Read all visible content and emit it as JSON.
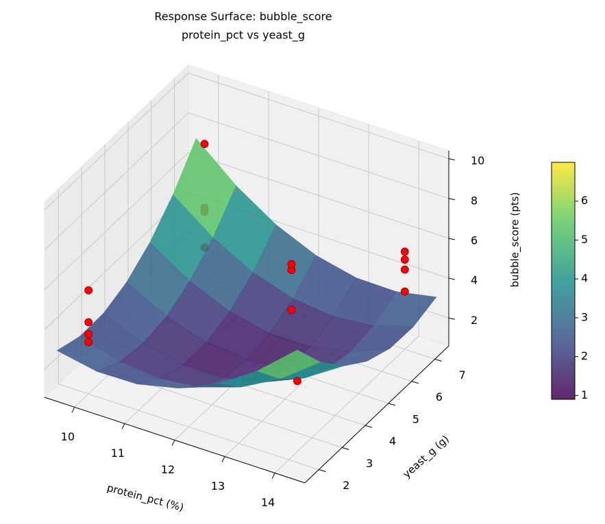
{
  "chart_data": {
    "type": "surface3d",
    "title": "Response Surface: bubble_score",
    "subtitle": "protein_pct vs yeast_g",
    "x_label": "protein_pct (%)",
    "y_label": "yeast_g (g)",
    "z_label": "bubble_score (pts)",
    "xlim": [
      9.4,
      14.6
    ],
    "ylim": [
      1.4,
      7.6
    ],
    "zlim": [
      0.6,
      10.4
    ],
    "xticks": [
      10,
      11,
      12,
      13,
      14
    ],
    "yticks": [
      2,
      3,
      4,
      5,
      6,
      7
    ],
    "zticks": [
      2,
      4,
      6,
      8,
      10
    ],
    "grid": true,
    "colormap": "viridis",
    "surface_alpha": 0.85,
    "colorbar": {
      "clim": [
        0.9,
        7.0
      ],
      "ticks": [
        1,
        2,
        3,
        4,
        5,
        6
      ]
    },
    "surface": {
      "x": [
        9.6,
        10.4,
        11.2,
        12,
        12.8,
        13.6,
        14.4
      ],
      "y": [
        1.5,
        2.5,
        3.5,
        4.5,
        5.5,
        6.5,
        7.5
      ],
      "z": [
        [
          3.0,
          2.61,
          2.64,
          3.1,
          3.98,
          5.28,
          7.0
        ],
        [
          2.61,
          2.0,
          1.81,
          2.04,
          2.7,
          3.78,
          5.28
        ],
        [
          2.64,
          1.81,
          1.4,
          1.41,
          1.84,
          2.7,
          3.98
        ],
        [
          3.1,
          2.04,
          1.41,
          1.2,
          1.41,
          2.04,
          3.1
        ],
        [
          3.98,
          2.7,
          1.84,
          1.41,
          1.4,
          1.81,
          2.64
        ],
        [
          5.28,
          3.78,
          2.7,
          2.04,
          1.81,
          2.0,
          2.61
        ],
        [
          7.0,
          5.28,
          3.98,
          3.1,
          2.64,
          2.61,
          3.0
        ]
      ]
    },
    "scatter": {
      "color": "#ff0000",
      "edgecolor": "#8b0000",
      "x": [
        10,
        10,
        10,
        10,
        10,
        10,
        10,
        10,
        14,
        14,
        14,
        14,
        12.2,
        12.2,
        12.2,
        13.8
      ],
      "y": [
        2,
        2,
        2,
        2,
        7,
        7,
        7,
        7,
        7,
        7,
        7,
        7,
        6,
        6,
        6,
        2.8
      ],
      "z": [
        5.8,
        4.2,
        3.6,
        3.2,
        7.6,
        4.4,
        4.2,
        2.4,
        5.5,
        5.1,
        4.6,
        3.5,
        4.5,
        4.2,
        2.2,
        3.5
      ]
    }
  }
}
